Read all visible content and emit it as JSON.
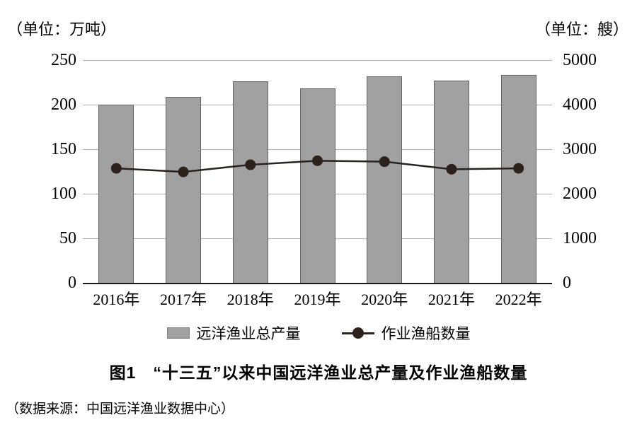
{
  "chart_data": {
    "type": "bar",
    "title": "图1　“十三五”以来中国远洋渔业总产量及作业渔船数量",
    "source": "（数据来源：中国远洋渔业数据中心）",
    "categories": [
      "2016年",
      "2017年",
      "2018年",
      "2019年",
      "2020年",
      "2021年",
      "2022年"
    ],
    "series": [
      {
        "name": "远洋渔业总产量",
        "type": "bar",
        "axis": "left",
        "values": [
          200,
          209,
          226,
          218,
          232,
          227,
          233
        ]
      },
      {
        "name": "作业渔船数量",
        "type": "line",
        "axis": "right",
        "values": [
          2570,
          2490,
          2650,
          2740,
          2720,
          2550,
          2570
        ]
      }
    ],
    "left_axis": {
      "unit": "（单位：万吨）",
      "ticks": [
        250,
        200,
        150,
        100,
        50,
        0
      ],
      "range": [
        0,
        250
      ]
    },
    "right_axis": {
      "unit": "（单位：艘）",
      "ticks": [
        5000,
        4000,
        3000,
        2000,
        1000,
        0
      ],
      "range": [
        0,
        5000
      ]
    },
    "grid": true,
    "legend_position": "bottom",
    "colors": {
      "bar_fill": "#a1a1a1",
      "bar_border": "#636363",
      "line": "#2a221e",
      "marker": "#2c211b",
      "gridline": "#b0b0b0",
      "axis": "#1a1a1a",
      "text": "#000000"
    }
  }
}
